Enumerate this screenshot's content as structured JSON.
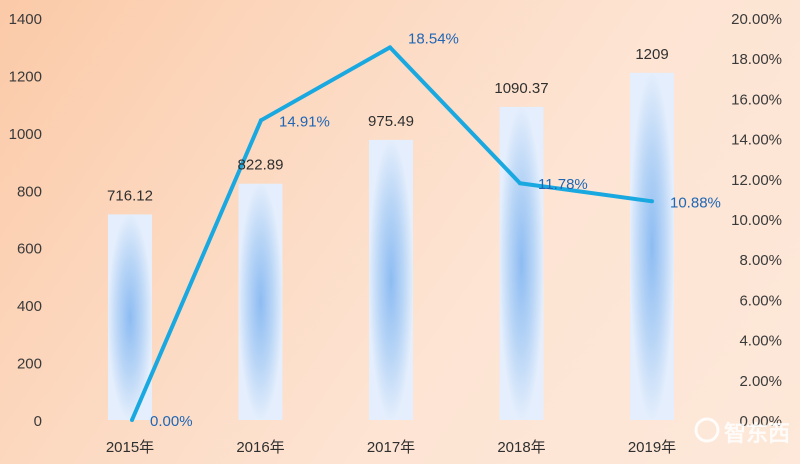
{
  "chart_data": {
    "type": "bar",
    "categories": [
      "2015年",
      "2016年",
      "2017年",
      "2018年",
      "2019年"
    ],
    "series": [
      {
        "type": "bar",
        "axis": "left",
        "values": [
          716.12,
          822.89,
          975.49,
          1090.37,
          1209
        ],
        "labels": [
          "716.12",
          "822.89",
          "975.49",
          "1090.37",
          "1209"
        ]
      },
      {
        "type": "line",
        "axis": "right",
        "values": [
          0.0,
          14.91,
          18.54,
          11.78,
          10.88
        ],
        "labels": [
          "0.00%",
          "14.91%",
          "18.54%",
          "11.78%",
          "10.88%"
        ]
      }
    ],
    "y_left": {
      "ylim": [
        0,
        1400
      ],
      "ticks": [
        "0",
        "200",
        "400",
        "600",
        "800",
        "1000",
        "1200",
        "1400"
      ]
    },
    "y_right": {
      "ylim": [
        0,
        20
      ],
      "ticks": [
        "0.00%",
        "2.00%",
        "4.00%",
        "6.00%",
        "8.00%",
        "10.00%",
        "12.00%",
        "14.00%",
        "16.00%",
        "18.00%",
        "20.00%"
      ]
    },
    "grid": false,
    "legend": "none",
    "colors": {
      "line": "#19a8e0",
      "bar_edge": "#dce9fb",
      "bar_center": "#8dbcf2",
      "pct_text": "#1f66b5"
    }
  },
  "watermark": {
    "text": "智东西"
  }
}
